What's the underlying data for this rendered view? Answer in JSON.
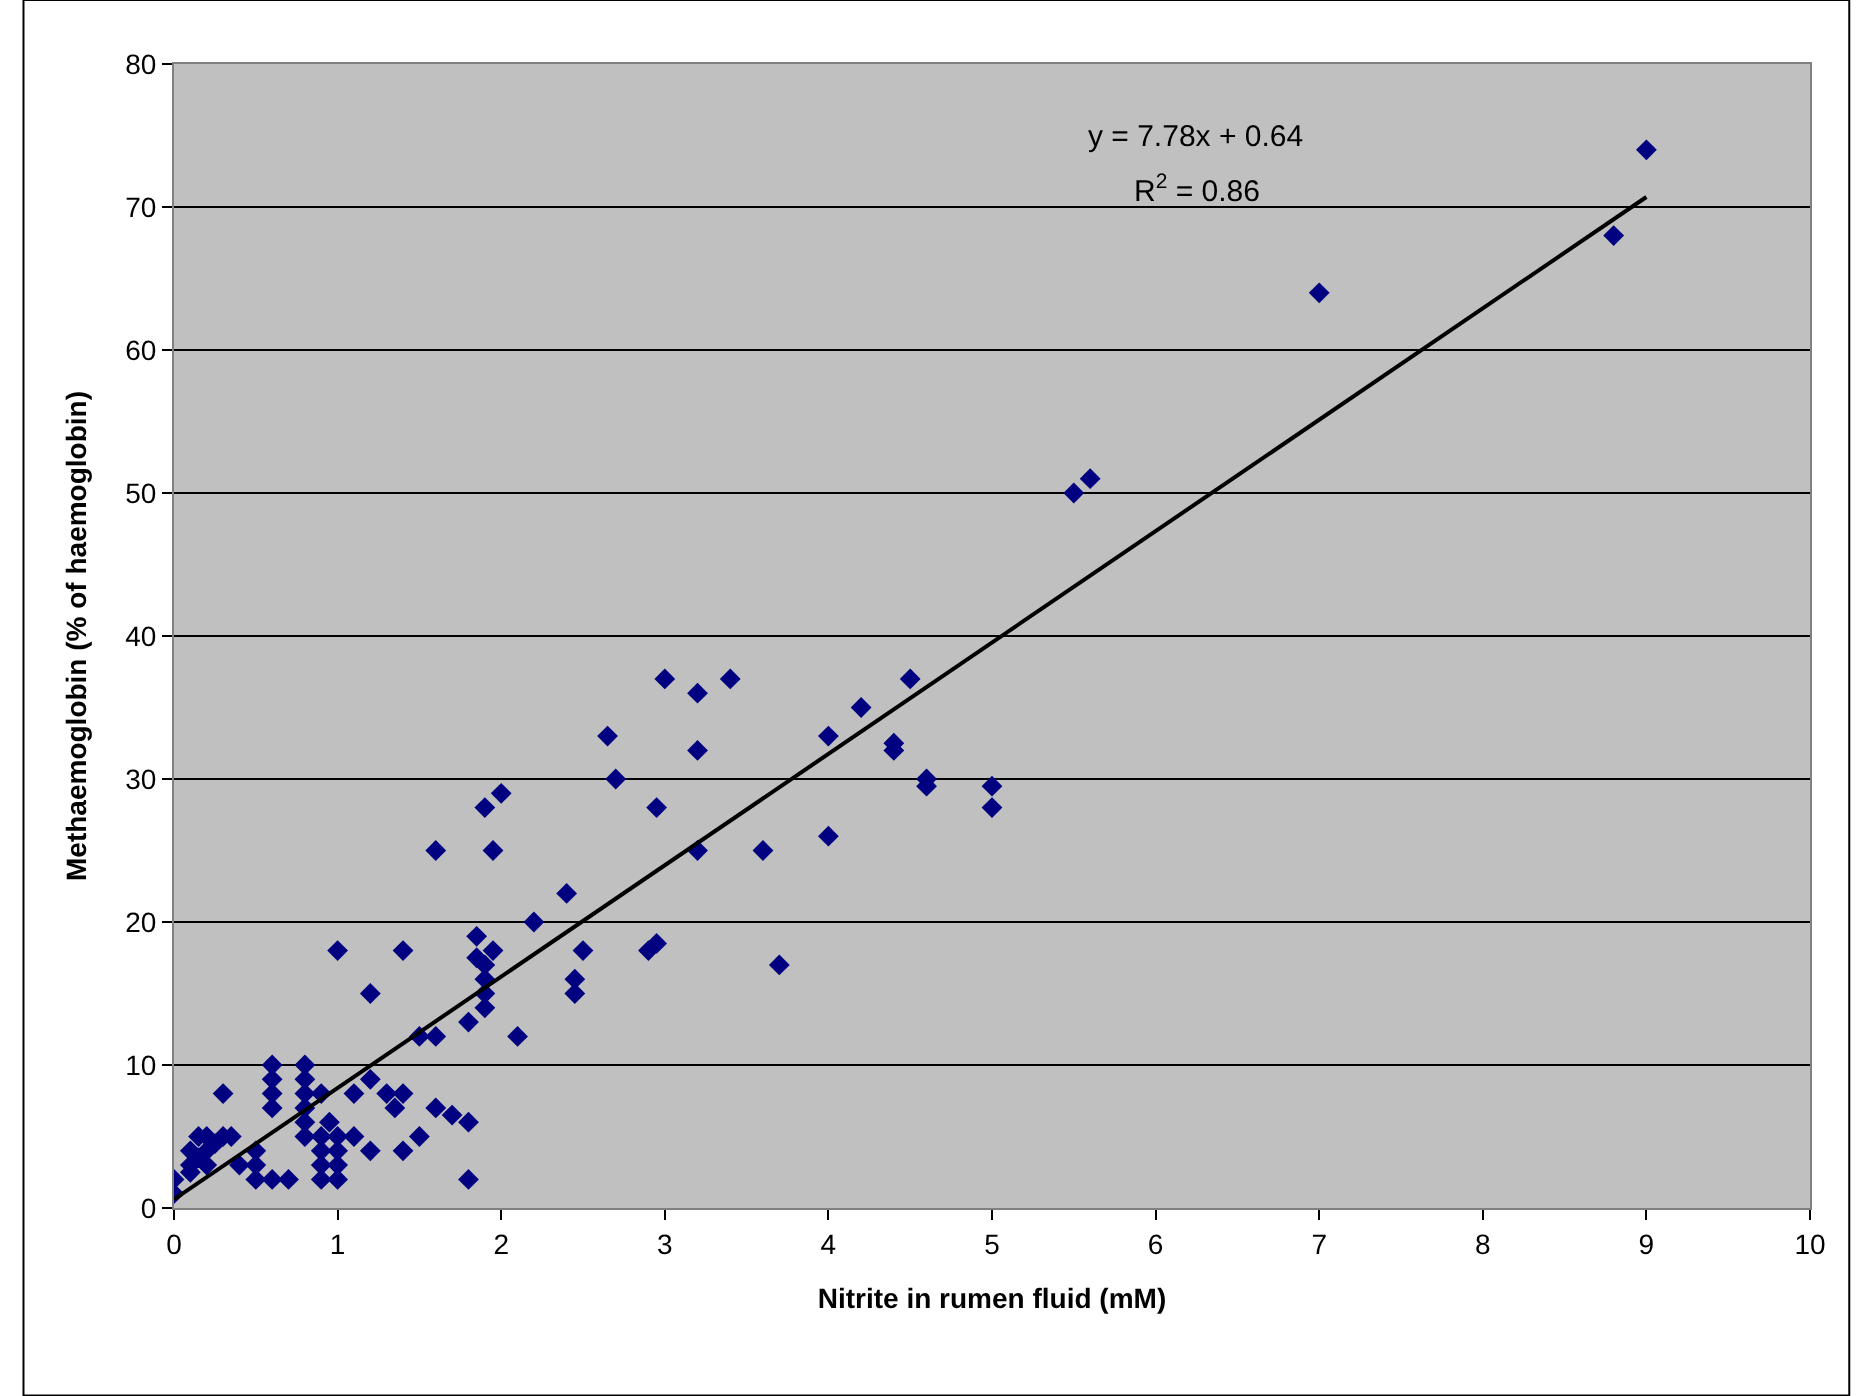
{
  "chart_data": {
    "type": "scatter",
    "xlabel": "Nitrite in rumen fluid (mM)",
    "ylabel": "Methaemoglobin (% of haemoglobin)",
    "xlim": [
      0,
      10
    ],
    "xticks": [
      0,
      1,
      2,
      3,
      4,
      5,
      6,
      7,
      8,
      9,
      10
    ],
    "ylim": [
      0,
      80
    ],
    "yticks": [
      0,
      10,
      20,
      30,
      40,
      50,
      60,
      70,
      80
    ],
    "grid": "y",
    "legend": false,
    "marker": "diamond",
    "annotations": [
      "y = 7.78x + 0.64",
      "R$^{2}$ = 0.86"
    ],
    "series": [
      {
        "color": "#000080",
        "x": [
          0,
          0,
          0.1,
          0.1,
          0.15,
          0.2,
          0.2,
          0.25,
          0.3,
          0.15,
          0.1,
          0.2,
          0.3,
          0.35,
          0.4,
          0.5,
          0.5,
          0.5,
          0.6,
          0.6,
          0.6,
          0.6,
          0.6,
          0.7,
          0.8,
          0.8,
          0.8,
          0.8,
          0.8,
          0.8,
          0.9,
          0.9,
          0.9,
          0.9,
          0.9,
          0.95,
          1,
          1,
          1,
          1,
          1,
          1.1,
          1.1,
          1.2,
          1.2,
          1.2,
          1.3,
          1.35,
          1.4,
          1.4,
          1.4,
          1.5,
          1.5,
          1.6,
          1.6,
          1.6,
          1.7,
          1.8,
          1.8,
          1.8,
          1.85,
          1.85,
          1.9,
          1.9,
          1.9,
          1.9,
          1.9,
          1.95,
          1.95,
          2,
          2.1,
          2.2,
          2.4,
          2.45,
          2.45,
          2.5,
          2.65,
          2.7,
          2.9,
          2.95,
          2.95,
          3,
          3.2,
          3.2,
          3.2,
          3.4,
          3.6,
          3.7,
          4,
          4,
          4.2,
          4.4,
          4.4,
          4.5,
          4.6,
          4.6,
          5,
          5,
          5.5,
          5.6,
          7,
          8.8,
          9
        ],
        "values": [
          1,
          2,
          3,
          4,
          5,
          4,
          5,
          4.5,
          5,
          3.5,
          2.5,
          3,
          8,
          5,
          3,
          2,
          3,
          4,
          2,
          7,
          8,
          9,
          10,
          2,
          5,
          6,
          7,
          8,
          9,
          10,
          2,
          3,
          4,
          5,
          8,
          6,
          2,
          3,
          4,
          5,
          18,
          5,
          8,
          4,
          9,
          15,
          8,
          7,
          4,
          8,
          18,
          5,
          12,
          7,
          12,
          25,
          6.5,
          2,
          6,
          13,
          17.5,
          19,
          14,
          15,
          16,
          17,
          28,
          18,
          25,
          29,
          12,
          20,
          22,
          15,
          16,
          18,
          33,
          30,
          18,
          18.5,
          28,
          37,
          25,
          32,
          36,
          37,
          25,
          17,
          26,
          33,
          35,
          32,
          32.5,
          37,
          29.5,
          30,
          28,
          29.5,
          50,
          51,
          64,
          68,
          74
        ]
      },
      {
        "type": "line",
        "marker": "none",
        "color": "#000000",
        "x": [
          0,
          9
        ],
        "values": [
          0.6,
          70.7
        ]
      }
    ]
  }
}
